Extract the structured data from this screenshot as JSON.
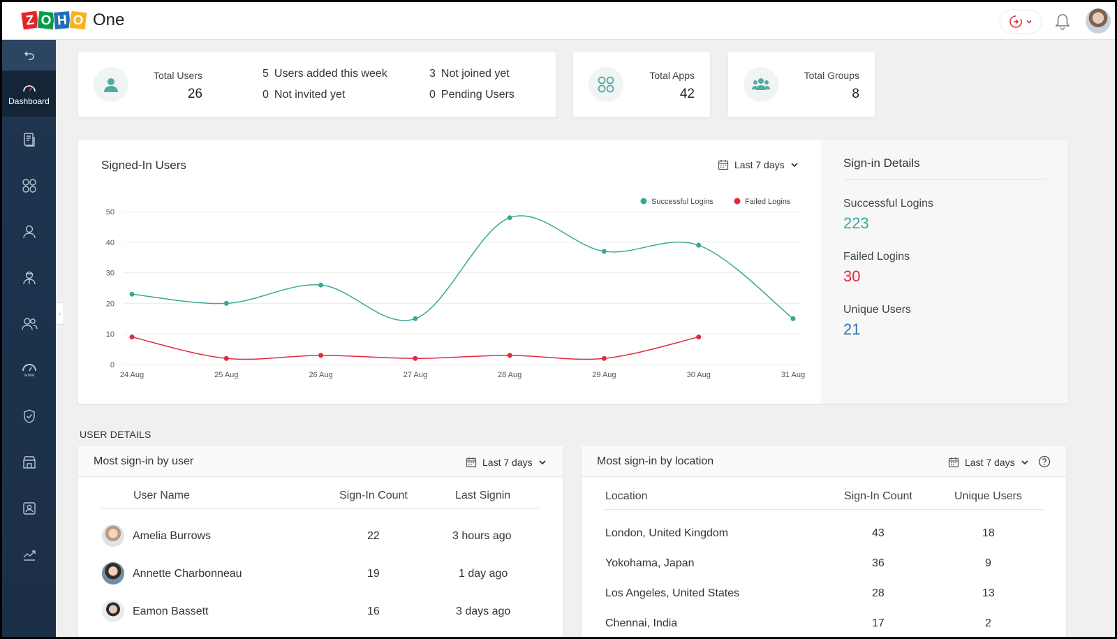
{
  "app": {
    "brand_letters": [
      "Z",
      "O",
      "H",
      "O"
    ],
    "product": "One"
  },
  "sidebar": {
    "items": [
      {
        "icon": "back-arrow-icon"
      },
      {
        "icon": "speedometer-icon",
        "label": "Dashboard",
        "active": true
      },
      {
        "icon": "report-icon"
      },
      {
        "icon": "apps-grid-icon"
      },
      {
        "icon": "user-icon"
      },
      {
        "icon": "admin-user-icon"
      },
      {
        "icon": "groups-icon"
      },
      {
        "icon": "domain-icon"
      },
      {
        "icon": "security-shield-icon"
      },
      {
        "icon": "marketplace-icon"
      },
      {
        "icon": "directory-icon"
      },
      {
        "icon": "analytics-icon"
      }
    ]
  },
  "summary": {
    "total_users_label": "Total Users",
    "total_users_value": "26",
    "users_added_count": "5",
    "users_added_label": "Users added this week",
    "not_invited_count": "0",
    "not_invited_label": "Not invited yet",
    "not_joined_count": "3",
    "not_joined_label": "Not joined yet",
    "pending_count": "0",
    "pending_label": "Pending Users",
    "total_apps_label": "Total Apps",
    "total_apps_value": "42",
    "total_groups_label": "Total Groups",
    "total_groups_value": "8"
  },
  "signed_in": {
    "title": "Signed-In Users",
    "range": "Last 7 days",
    "details_title": "Sign-in Details",
    "successful_label": "Successful Logins",
    "successful_value": "223",
    "failed_label": "Failed Logins",
    "failed_value": "30",
    "unique_label": "Unique Users",
    "unique_value": "21"
  },
  "colors": {
    "success": "#3aa897",
    "failed": "#e2293f",
    "unique": "#2f74b5"
  },
  "chart_data": {
    "type": "line",
    "categories": [
      "24 Aug",
      "25 Aug",
      "26 Aug",
      "27 Aug",
      "28 Aug",
      "29 Aug",
      "30 Aug",
      "31 Aug"
    ],
    "series": [
      {
        "name": "Successful Logins",
        "values": [
          23,
          20,
          26,
          15,
          48,
          37,
          39,
          15
        ],
        "color": "#3aa897"
      },
      {
        "name": "Failed Logins",
        "values": [
          9,
          2,
          3,
          2,
          3,
          2,
          9,
          null
        ],
        "color": "#e2293f"
      }
    ],
    "yticks": [
      0,
      10,
      20,
      30,
      40,
      50
    ],
    "ylim": [
      0,
      50
    ],
    "grid": true,
    "legend": "top-right"
  },
  "user_details": {
    "section_title": "USER DETAILS",
    "by_user": {
      "title": "Most sign-in by user",
      "range": "Last 7 days",
      "columns": [
        "User Name",
        "Sign-In Count",
        "Last Signin"
      ],
      "rows": [
        {
          "name": "Amelia Burrows",
          "count": "22",
          "last": "3 hours ago"
        },
        {
          "name": "Annette Charbonneau",
          "count": "19",
          "last": "1 day ago"
        },
        {
          "name": "Eamon Bassett",
          "count": "16",
          "last": "3 days ago"
        }
      ]
    },
    "by_location": {
      "title": "Most sign-in by location",
      "range": "Last 7 days",
      "columns": [
        "Location",
        "Sign-In Count",
        "Unique Users"
      ],
      "rows": [
        {
          "location": "London, United Kingdom",
          "count": "43",
          "unique": "18"
        },
        {
          "location": "Yokohama, Japan",
          "count": "36",
          "unique": "9"
        },
        {
          "location": "Los Angeles, United States",
          "count": "28",
          "unique": "13"
        },
        {
          "location": "Chennai, India",
          "count": "17",
          "unique": "2"
        }
      ]
    }
  }
}
